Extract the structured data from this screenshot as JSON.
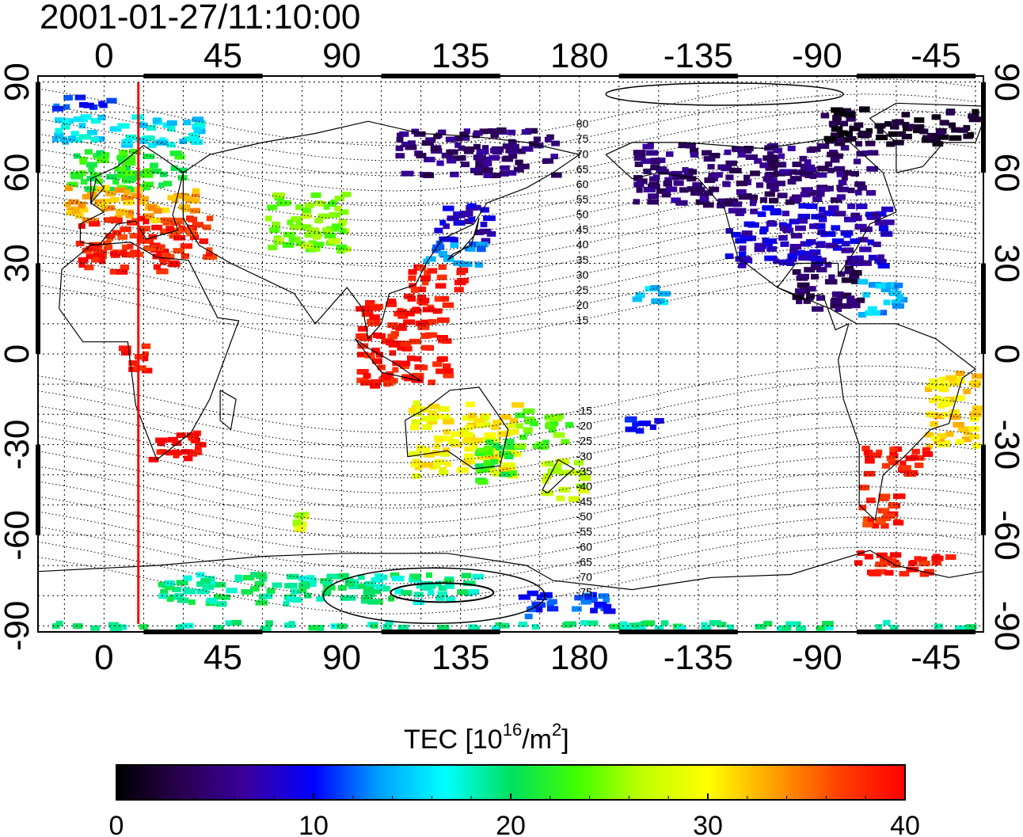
{
  "timestamp": "2001-01-27/11:10:00",
  "map": {
    "lon_ticks": [
      {
        "lon": 0,
        "label": "0"
      },
      {
        "lon": 45,
        "label": "45"
      },
      {
        "lon": 90,
        "label": "90"
      },
      {
        "lon": 135,
        "label": "135"
      },
      {
        "lon": 180,
        "label": "180"
      },
      {
        "lon": 225,
        "label": "-135"
      },
      {
        "lon": 270,
        "label": "-90"
      },
      {
        "lon": 315,
        "label": "-45"
      }
    ],
    "lat_ticks": [
      {
        "lat": 90,
        "label": "90"
      },
      {
        "lat": 60,
        "label": "60"
      },
      {
        "lat": 30,
        "label": "30"
      },
      {
        "lat": 0,
        "label": "0"
      },
      {
        "lat": -30,
        "label": "-30"
      },
      {
        "lat": -60,
        "label": "-60"
      },
      {
        "lat": -90,
        "label": "-90"
      }
    ],
    "lon_range": [
      -25,
      333
    ],
    "lat_range": [
      -92,
      92
    ],
    "sun_meridian_lon": 13,
    "geomagnetic_latitude_labels": [
      "80",
      "75",
      "70",
      "65",
      "60",
      "55",
      "50",
      "45",
      "40",
      "35",
      "30",
      "25",
      "20",
      "15",
      "-15",
      "-20",
      "-25",
      "-30",
      "-35",
      "-40",
      "-45",
      "-50",
      "-55",
      "-60",
      "-65",
      "-70",
      "-75"
    ],
    "geomagnetic_label_lon": 180
  },
  "colorbar": {
    "label": "TEC  [10",
    "label_exp1": "16",
    "label_mid": "/m",
    "label_exp2": "2",
    "label_end": "]",
    "min": 0,
    "max": 40,
    "ticks": [
      {
        "value": 0,
        "label": "0"
      },
      {
        "value": 10,
        "label": "10"
      },
      {
        "value": 20,
        "label": "20"
      },
      {
        "value": 30,
        "label": "30"
      },
      {
        "value": 40,
        "label": "40"
      }
    ],
    "stops": [
      "#000000",
      "#2a0050",
      "#3a00a0",
      "#0000ff",
      "#00a0ff",
      "#00ffff",
      "#00e060",
      "#40ff00",
      "#c0ff00",
      "#ffff00",
      "#ffa000",
      "#ff4000",
      "#ff0000"
    ]
  },
  "tec_regions": [
    {
      "name": "europe-north",
      "lon": [
        -15,
        30
      ],
      "lat": [
        55,
        68
      ],
      "tec": 22
    },
    {
      "name": "europe-central",
      "lon": [
        -15,
        35
      ],
      "lat": [
        45,
        56
      ],
      "tec": 33
    },
    {
      "name": "europe-south",
      "lon": [
        -12,
        40
      ],
      "lat": [
        33,
        46
      ],
      "tec": 38
    },
    {
      "name": "north-africa",
      "lon": [
        -10,
        25
      ],
      "lat": [
        28,
        35
      ],
      "tec": 39
    },
    {
      "name": "scandinavia-north",
      "lon": [
        -20,
        35
      ],
      "lat": [
        70,
        80
      ],
      "tec": 16
    },
    {
      "name": "arctic-strip",
      "lon": [
        -20,
        5
      ],
      "lat": [
        82,
        86
      ],
      "tec": 11
    },
    {
      "name": "central-asia",
      "lon": [
        60,
        90
      ],
      "lat": [
        35,
        55
      ],
      "tec": 25
    },
    {
      "name": "japan-north",
      "lon": [
        125,
        145
      ],
      "lat": [
        38,
        50
      ],
      "tec": 8
    },
    {
      "name": "japan-central",
      "lon": [
        120,
        142
      ],
      "lat": [
        30,
        38
      ],
      "tec": 13
    },
    {
      "name": "east-china",
      "lon": [
        115,
        138
      ],
      "lat": [
        22,
        30
      ],
      "tec": 39
    },
    {
      "name": "siberia",
      "lon": [
        110,
        170
      ],
      "lat": [
        60,
        75
      ],
      "tec": 5
    },
    {
      "name": "southeast-asia",
      "lon": [
        95,
        130
      ],
      "lat": [
        -10,
        20
      ],
      "tec": 39
    },
    {
      "name": "australia",
      "lon": [
        115,
        155
      ],
      "lat": [
        -40,
        -15
      ],
      "tec": 30
    },
    {
      "name": "australia-east",
      "lon": [
        140,
        155
      ],
      "lat": [
        -42,
        -28
      ],
      "tec": 22
    },
    {
      "name": "new-zealand",
      "lon": [
        165,
        180
      ],
      "lat": [
        -48,
        -34
      ],
      "tec": 27
    },
    {
      "name": "pacific-islands",
      "lon": [
        155,
        175
      ],
      "lat": [
        -30,
        -18
      ],
      "tec": 24
    },
    {
      "name": "south-africa",
      "lon": [
        15,
        35
      ],
      "lat": [
        -35,
        -25
      ],
      "tec": 40
    },
    {
      "name": "west-africa",
      "lon": [
        5,
        15
      ],
      "lat": [
        -5,
        5
      ],
      "tec": 39
    },
    {
      "name": "canada",
      "lon": [
        200,
        290
      ],
      "lat": [
        50,
        70
      ],
      "tec": 5
    },
    {
      "name": "usa",
      "lon": [
        235,
        295
      ],
      "lat": [
        30,
        50
      ],
      "tec": 8
    },
    {
      "name": "gulf-coast",
      "lon": [
        260,
        285
      ],
      "lat": [
        15,
        30
      ],
      "tec": 4
    },
    {
      "name": "greenland",
      "lon": [
        270,
        330
      ],
      "lat": [
        70,
        82
      ],
      "tec": 2
    },
    {
      "name": "caribbean",
      "lon": [
        285,
        300
      ],
      "lat": [
        12,
        25
      ],
      "tec": 14
    },
    {
      "name": "hawaii",
      "lon": [
        200,
        210
      ],
      "lat": [
        18,
        25
      ],
      "tec": 15
    },
    {
      "name": "brazil-east",
      "lon": [
        310,
        330
      ],
      "lat": [
        -30,
        -5
      ],
      "tec": 31
    },
    {
      "name": "argentina",
      "lon": [
        285,
        310
      ],
      "lat": [
        -40,
        -30
      ],
      "tec": 39
    },
    {
      "name": "patagonia",
      "lon": [
        285,
        300
      ],
      "lat": [
        -56,
        -42
      ],
      "tec": 38
    },
    {
      "name": "south-atlantic",
      "lon": [
        280,
        320
      ],
      "lat": [
        -72,
        -65
      ],
      "tec": 39
    },
    {
      "name": "antarctic-coast",
      "lon": [
        -20,
        330
      ],
      "lat": [
        -90,
        -88
      ],
      "tec": 19
    },
    {
      "name": "antarctic-band",
      "lon": [
        20,
        140
      ],
      "lat": [
        -82,
        -72
      ],
      "tec": 19
    },
    {
      "name": "ross-sea",
      "lon": [
        155,
        190
      ],
      "lat": [
        -86,
        -78
      ],
      "tec": 11
    },
    {
      "name": "south-pacific-mid",
      "lon": [
        195,
        210
      ],
      "lat": [
        -25,
        -20
      ],
      "tec": 10
    },
    {
      "name": "indian-ocean-south",
      "lon": [
        70,
        80
      ],
      "lat": [
        -58,
        -52
      ],
      "tec": 27
    }
  ]
}
